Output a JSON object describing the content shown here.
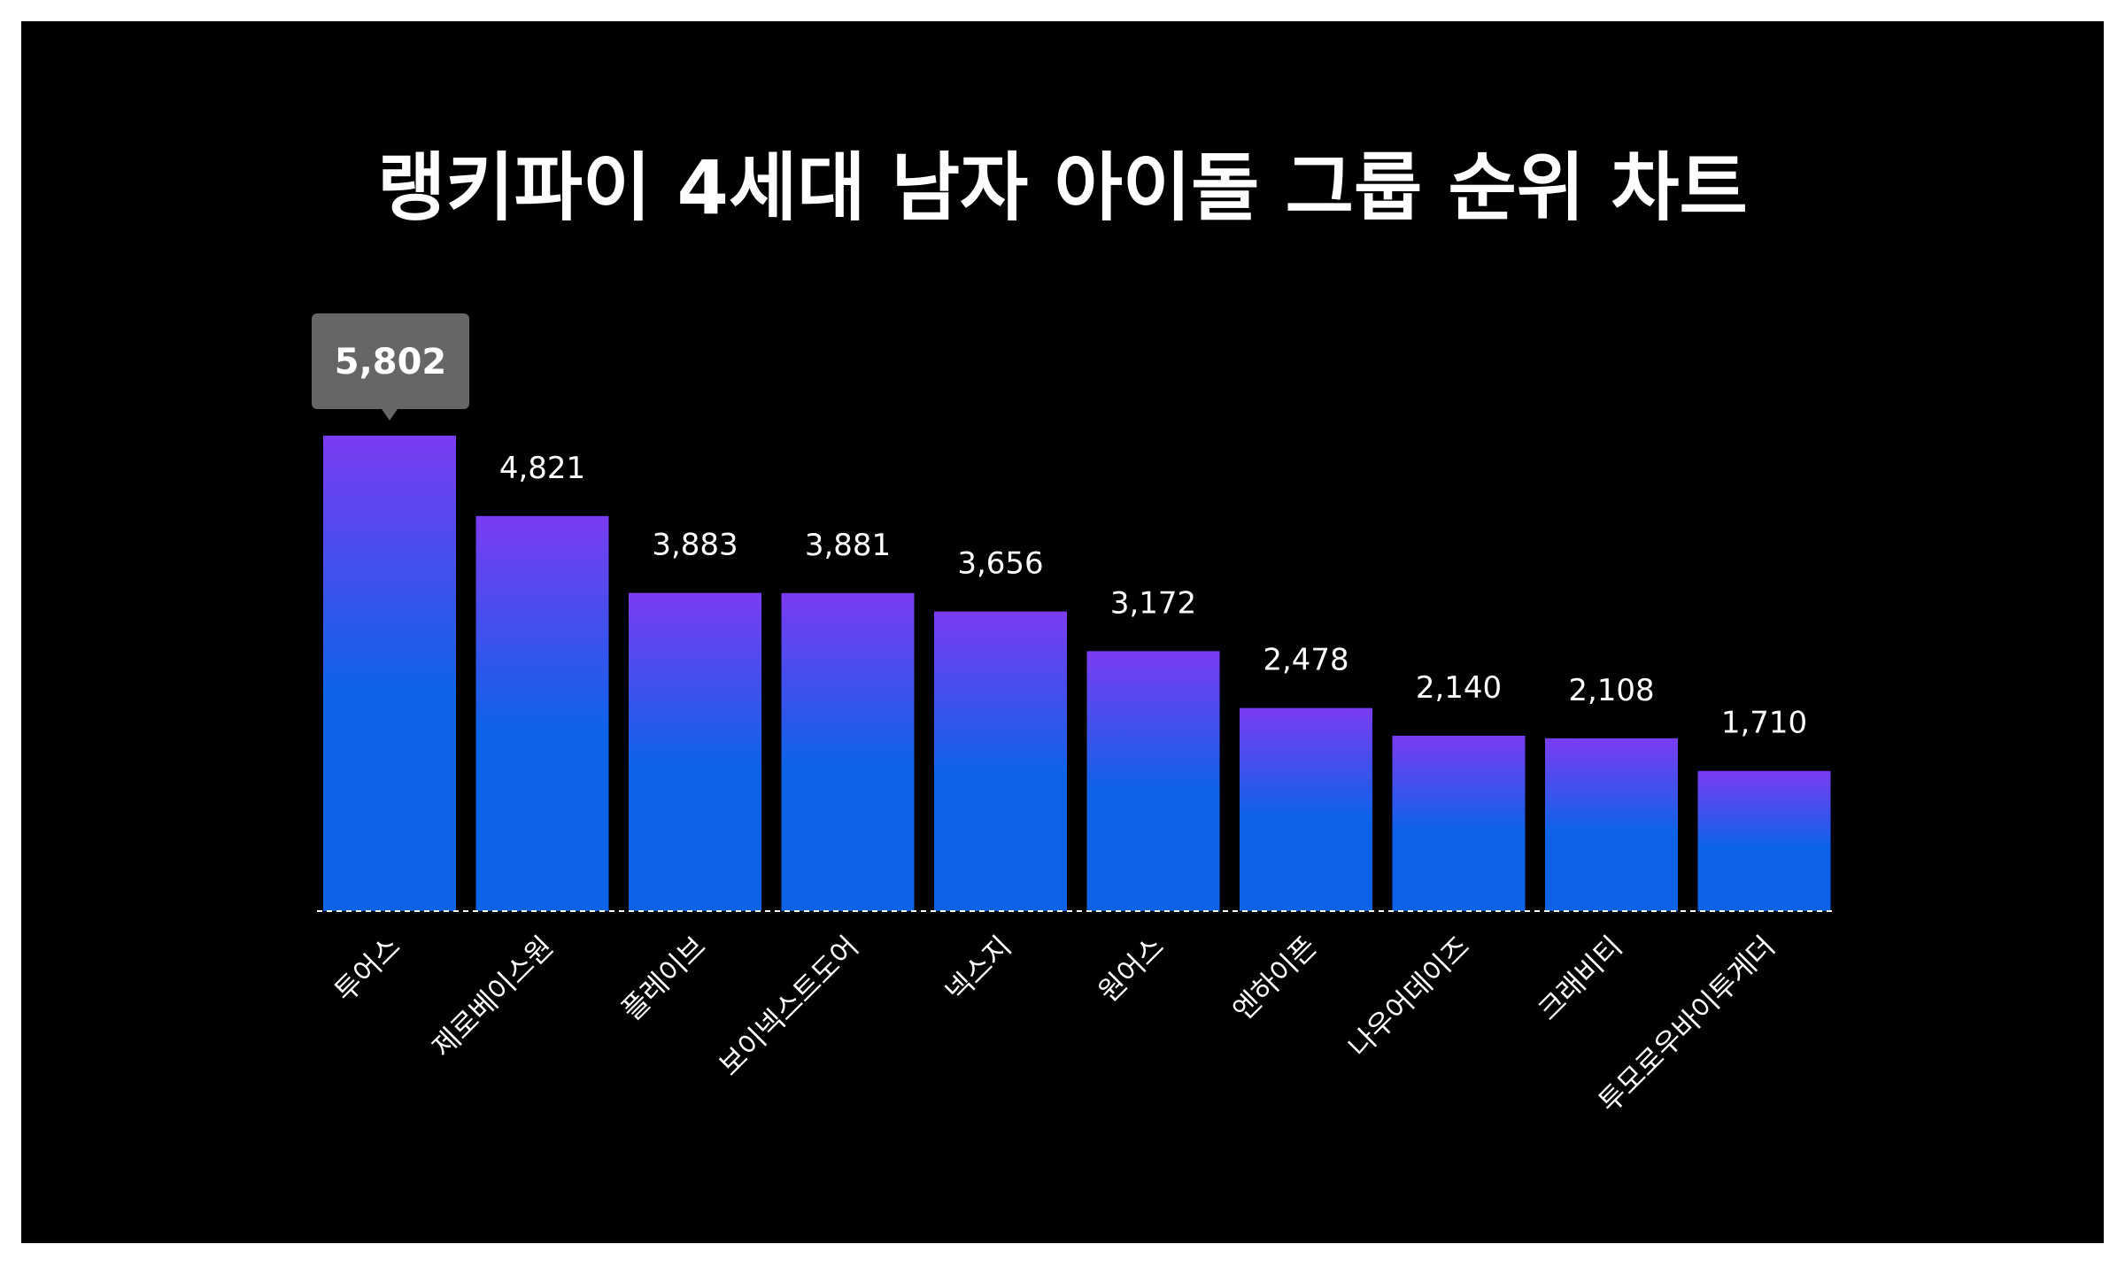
{
  "chart_data": {
    "type": "bar",
    "title": "랭키파이 4세대 남자 아이돌 그룹 순위 차트",
    "categories": [
      "투어스",
      "제로베이스원",
      "플레이브",
      "보이넥스트도어",
      "넥스지",
      "원어스",
      "엔하이픈",
      "나우어데이즈",
      "크래비티",
      "투모로우바이투게더"
    ],
    "values": [
      5802,
      4821,
      3883,
      3881,
      3656,
      3172,
      2478,
      2140,
      2108,
      1710
    ],
    "value_labels": [
      "5,802",
      "4,821",
      "3,883",
      "3,881",
      "3,656",
      "3,172",
      "2,478",
      "2,140",
      "2,108",
      "1,710"
    ],
    "highlighted_index": 0,
    "xlabel": "",
    "ylabel": "",
    "ylim": [
      0,
      5802
    ],
    "grid": false,
    "colors": {
      "background": "#000000",
      "bar_top": "#7a3cf0",
      "bar_bottom": "#0c63e8",
      "tooltip_bg": "#666666",
      "text": "#ffffff",
      "baseline": "#ffffff"
    }
  }
}
